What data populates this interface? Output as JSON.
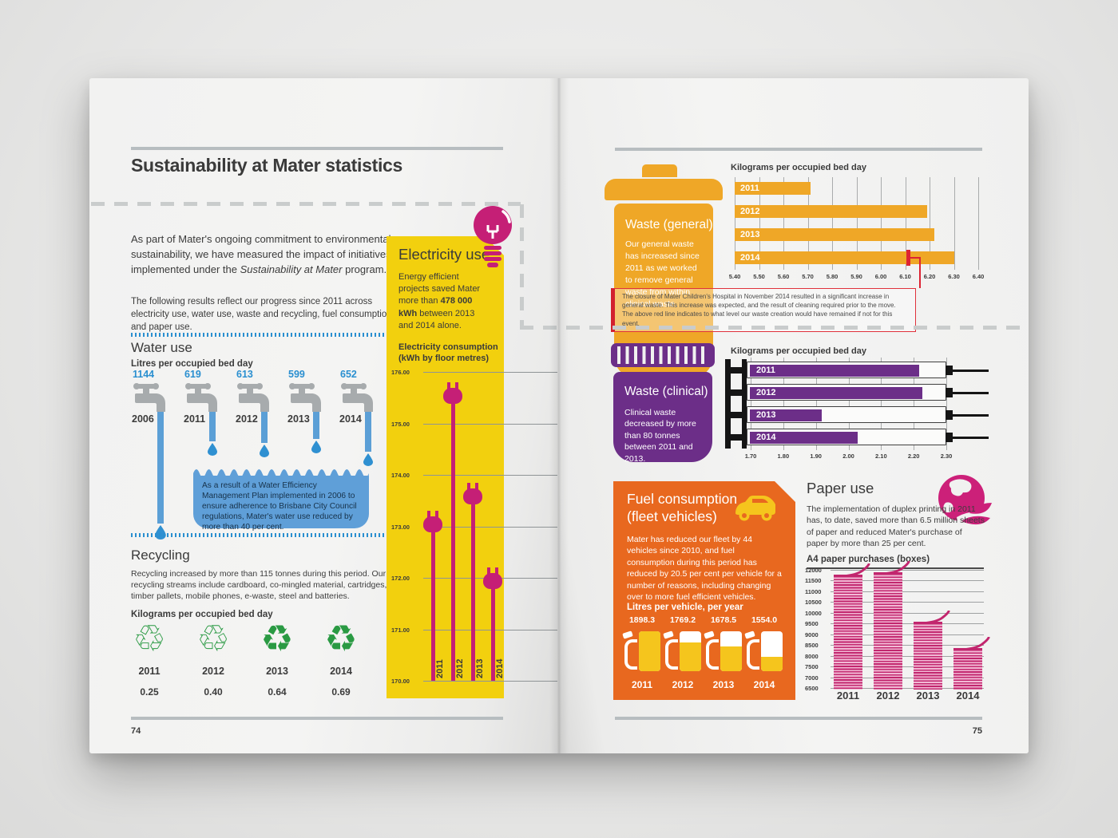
{
  "spread": {
    "left_page_number": "74",
    "right_page_number": "75"
  },
  "left_page": {
    "title": "Sustainability at Mater statistics",
    "intro_pre": "As part of Mater's ongoing commitment to environmental sustainability, we have measured the impact of initiatives implemented under the ",
    "intro_italic": "Sustainability at Mater",
    "intro_post": " program.",
    "intro_2": "The following results reflect our progress since 2011 across electricity use, water use, waste and recycling, fuel consumption and paper use.",
    "water": {
      "heading": "Water use",
      "unit_label": "Litres per occupied bed day",
      "years": [
        "2006",
        "2011",
        "2012",
        "2013",
        "2014"
      ],
      "values": [
        "1144",
        "619",
        "613",
        "599",
        "652"
      ],
      "note": "As a result of a Water Efficiency Management Plan implemented in 2006 to ensure adherence to Brisbane City Council regulations, Mater's water use reduced by more than 40 per cent."
    },
    "recycling": {
      "heading": "Recycling",
      "body": "Recycling increased by more than 115 tonnes during this period. Our recycling streams include cardboard, co-mingled material, cartridges, timber pallets, mobile phones, e-waste, steel and batteries.",
      "unit_label": "Kilograms per occupied bed day",
      "years": [
        "2011",
        "2012",
        "2013",
        "2014"
      ],
      "values": [
        "0.25",
        "0.40",
        "0.64",
        "0.69"
      ],
      "icon_glyphs": [
        "♲",
        "♲",
        "♻",
        "♻"
      ]
    },
    "electricity": {
      "heading": "Electricity use",
      "body_pre": "Energy efficient projects saved Mater more than ",
      "body_bold": "478 000 kWh",
      "body_post": " between 2013 and 2014 alone.",
      "chart_title_line1": "Electricity consumption",
      "chart_title_line2": "(kWh by floor metres)"
    }
  },
  "right_page": {
    "waste_general": {
      "title": "Waste (general)",
      "body": "Our general waste has increased since 2011 as we worked to remove general waste from within clinical waste.",
      "chart_label": "Kilograms per occupied bed day",
      "note": "The closure of Mater Children's Hospital in November 2014 resulted in a significant increase in general waste. This increase was expected, and the result of cleaning required prior to the move. The above red line indicates to what level our waste creation would have remained if not for this event."
    },
    "waste_clinical": {
      "title": "Waste (clinical)",
      "body": "Clinical waste decreased by more than 80 tonnes between 2011 and 2013.",
      "chart_label": "Kilograms per occupied bed day"
    },
    "fuel": {
      "title_line1": "Fuel consumption",
      "title_line2": "(fleet vehicles)",
      "body": "Mater has reduced our fleet by 44 vehicles since 2010, and fuel consumption during this period has reduced by 20.5 per cent per vehicle for a number of reasons, including changing over to more fuel efficient vehicles.",
      "unit_label": "Litres per vehicle, per year",
      "values": [
        "1898.3",
        "1769.2",
        "1678.5",
        "1554.0"
      ],
      "years": [
        "2011",
        "2012",
        "2013",
        "2014"
      ],
      "fill_pct": [
        100,
        72,
        62,
        36
      ]
    },
    "paper": {
      "heading": "Paper use",
      "body": "The implementation of duplex printing in 2011 has, to date, saved more than 6.5 million sheets of paper and reduced Mater's purchase of paper by more than 25 per cent.",
      "chart_label": "A4 paper purchases (boxes)"
    }
  },
  "colors": {
    "yellow": "#f2d00e",
    "magenta": "#c51f76",
    "orange": "#efa727",
    "deep_orange": "#e8681f",
    "purple": "#6c2e88",
    "blue": "#4e9ad4",
    "blue_text": "#2a8fd0",
    "green": "#2a9a43",
    "red": "#dd2333",
    "text": "#3b3b3b"
  },
  "chart_data": [
    {
      "id": "water_use",
      "type": "pictogram-bar",
      "title": "Water use",
      "unit": "Litres per occupied bed day",
      "categories": [
        "2006",
        "2011",
        "2012",
        "2013",
        "2014"
      ],
      "values": [
        1144,
        619,
        613,
        599,
        652
      ]
    },
    {
      "id": "electricity",
      "type": "lollipop-line",
      "title": "Electricity consumption (kWh by floor metres)",
      "x": [
        "2011",
        "2012",
        "2013",
        "2014"
      ],
      "values": [
        173.3,
        175.8,
        173.85,
        172.2
      ],
      "ylim": [
        170,
        176
      ],
      "tick_labels": [
        "176.00",
        "175.00",
        "174.00",
        "173.00",
        "172.00",
        "171.00",
        "170.00"
      ]
    },
    {
      "id": "recycling",
      "type": "pictogram",
      "title": "Recycling (kilograms per occupied bed day)",
      "categories": [
        "2011",
        "2012",
        "2013",
        "2014"
      ],
      "values": [
        0.25,
        0.4,
        0.64,
        0.69
      ]
    },
    {
      "id": "waste_general",
      "type": "bar-horizontal",
      "title": "Waste (general) — kilograms per occupied bed day",
      "categories": [
        "2011",
        "2012",
        "2013",
        "2014"
      ],
      "values": [
        5.71,
        6.19,
        6.22,
        6.3
      ],
      "xlim": [
        5.4,
        6.4
      ],
      "tick_labels": [
        "5.40",
        "5.50",
        "5.60",
        "5.70",
        "5.80",
        "5.90",
        "6.00",
        "6.10",
        "6.20",
        "6.30",
        "6.40"
      ],
      "annotation": {
        "year": "2014",
        "value": 6.11,
        "meaning": "level waste would have remained at if not for hospital closure"
      }
    },
    {
      "id": "waste_clinical",
      "type": "bar-horizontal",
      "title": "Waste (clinical) — kilograms per occupied bed day",
      "categories": [
        "2011",
        "2012",
        "2013",
        "2014"
      ],
      "values": [
        2.22,
        2.23,
        1.92,
        2.03
      ],
      "xlim": [
        1.7,
        2.3
      ],
      "tick_labels": [
        "1.70",
        "1.80",
        "1.90",
        "2.00",
        "2.10",
        "2.20",
        "2.30"
      ]
    },
    {
      "id": "fuel",
      "type": "pictogram",
      "title": "Fuel consumption — litres per vehicle, per year",
      "categories": [
        "2011",
        "2012",
        "2013",
        "2014"
      ],
      "values": [
        1898.3,
        1769.2,
        1678.5,
        1554.0
      ]
    },
    {
      "id": "paper",
      "type": "bar",
      "title": "A4 paper purchases (boxes)",
      "categories": [
        "2011",
        "2012",
        "2013",
        "2014"
      ],
      "values": [
        11780,
        11880,
        9600,
        8350
      ],
      "ylim": [
        6500,
        12000
      ],
      "tick_labels": [
        "12000",
        "11500",
        "11000",
        "10500",
        "10000",
        "9500",
        "9000",
        "8500",
        "8000",
        "7500",
        "7000",
        "6500"
      ]
    }
  ]
}
